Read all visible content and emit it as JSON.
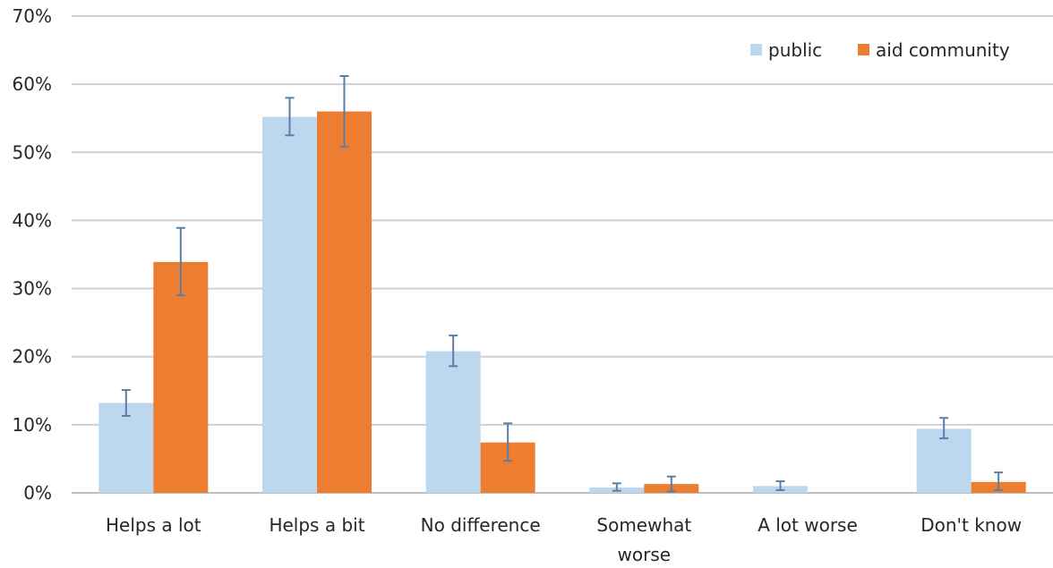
{
  "chart_data": {
    "type": "bar",
    "categories": [
      "Helps a lot",
      "Helps a bit",
      "No difference",
      "Somewhat worse",
      "A lot worse",
      "Don't know"
    ],
    "category_lines": [
      [
        "Helps a lot"
      ],
      [
        "Helps a bit"
      ],
      [
        "No difference"
      ],
      [
        "Somewhat",
        "worse"
      ],
      [
        "A lot worse"
      ],
      [
        "Don't know"
      ]
    ],
    "series": [
      {
        "name": "public",
        "color": "#bdd7ee",
        "values": [
          13.2,
          55.2,
          20.8,
          0.8,
          1.0,
          9.4
        ],
        "error_low": [
          11.3,
          52.5,
          18.6,
          0.3,
          0.4,
          8.0
        ],
        "error_high": [
          15.1,
          58.0,
          23.1,
          1.4,
          1.7,
          11.0
        ]
      },
      {
        "name": "aid community",
        "color": "#ed7d31",
        "values": [
          33.9,
          56.0,
          7.4,
          1.3,
          null,
          1.6
        ],
        "error_low": [
          29.0,
          50.8,
          4.7,
          0.2,
          null,
          0.4
        ],
        "error_high": [
          38.9,
          61.2,
          10.2,
          2.4,
          null,
          3.0
        ]
      }
    ],
    "y_ticks": [
      "0%",
      "10%",
      "20%",
      "30%",
      "40%",
      "50%",
      "60%",
      "70%"
    ],
    "ylim": [
      0,
      70
    ],
    "title": "",
    "xlabel": "",
    "ylabel": "",
    "grid": true,
    "legend_position": "top-right"
  }
}
